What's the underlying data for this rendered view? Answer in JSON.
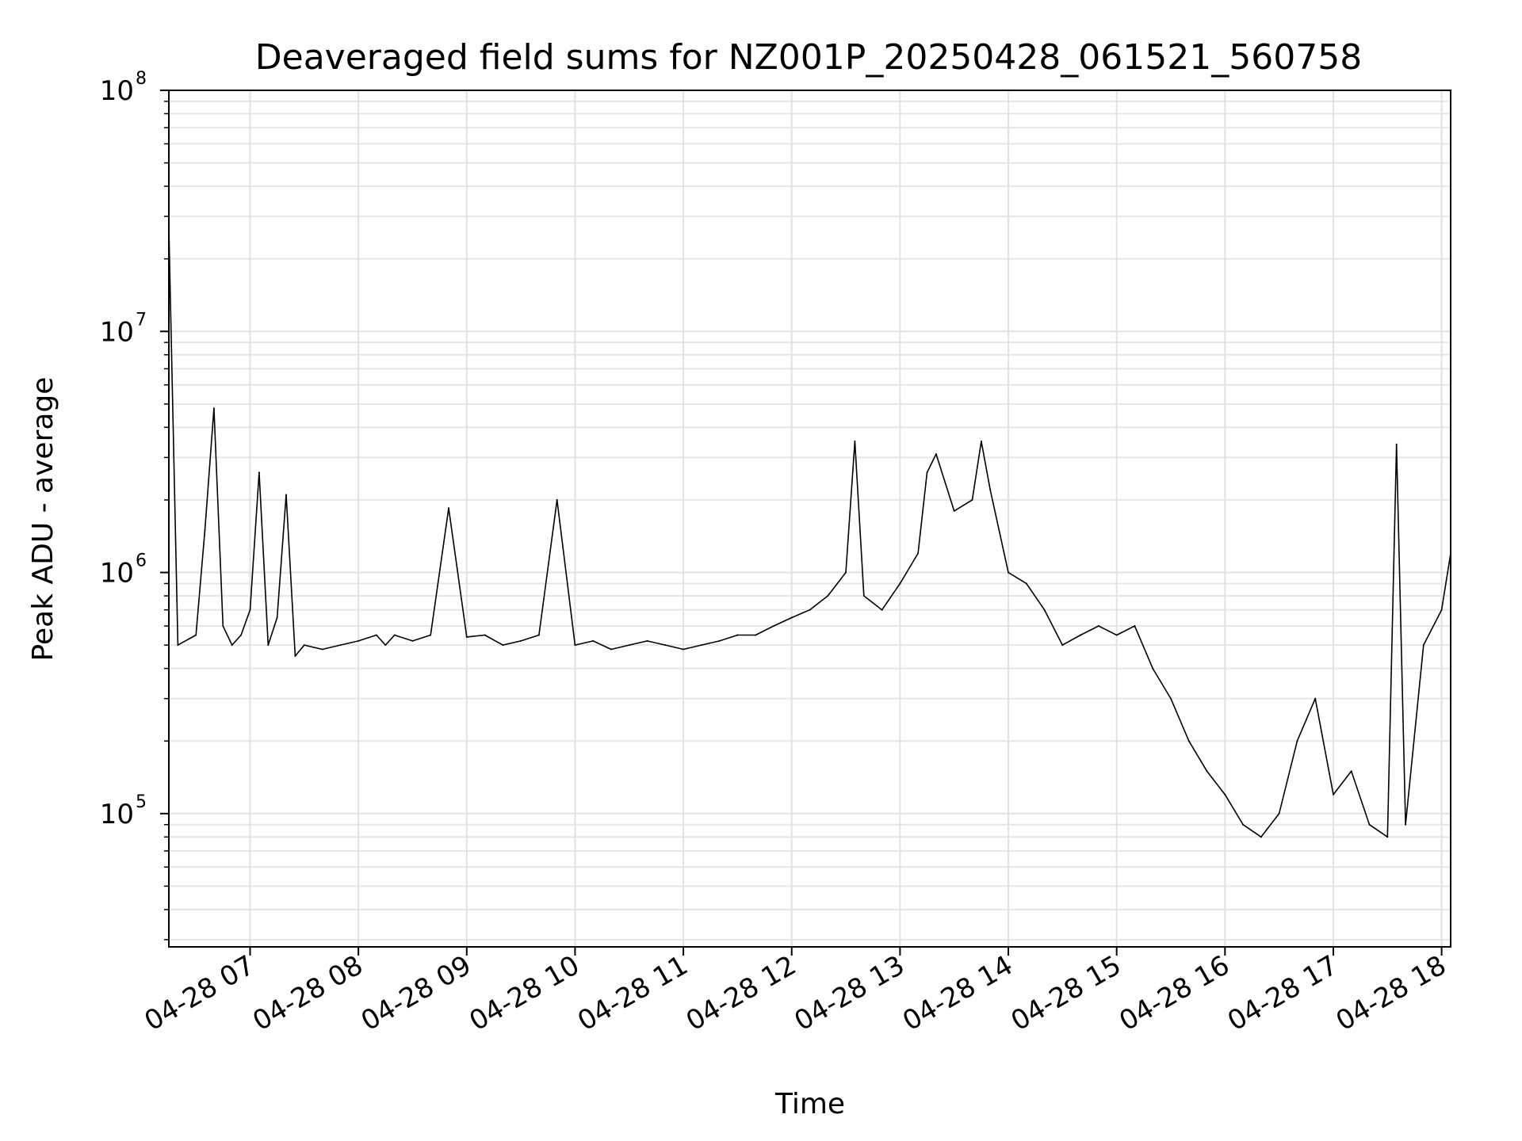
{
  "chart_data": {
    "type": "line",
    "title": "Deaveraged field sums for NZ001P_20250428_061521_560758",
    "xlabel": "Time",
    "ylabel": "Peak ADU - average",
    "yscale": "log",
    "ylim": [
      28000,
      100000000
    ],
    "xlim": [
      "04-28 06:15",
      "04-28 18:05"
    ],
    "grid": true,
    "x_tick_labels": [
      "04-28 07",
      "04-28 08",
      "04-28 09",
      "04-28 10",
      "04-28 11",
      "04-28 12",
      "04-28 13",
      "04-28 14",
      "04-28 15",
      "04-28 16",
      "04-28 17",
      "04-28 18"
    ],
    "y_tick_labels": [
      {
        "base": "10",
        "exp": "5",
        "value": 100000
      },
      {
        "base": "10",
        "exp": "6",
        "value": 1000000
      },
      {
        "base": "10",
        "exp": "7",
        "value": 10000000
      },
      {
        "base": "10",
        "exp": "8",
        "value": 100000000
      }
    ],
    "line_color": "#000000",
    "series": [
      {
        "x": [
          "04-28 06:15",
          "04-28 06:20",
          "04-28 06:30",
          "04-28 06:35",
          "04-28 06:40",
          "04-28 06:45",
          "04-28 06:50",
          "04-28 06:55",
          "04-28 07:00",
          "04-28 07:05",
          "04-28 07:10",
          "04-28 07:15",
          "04-28 07:20",
          "04-28 07:25",
          "04-28 07:30",
          "04-28 07:40",
          "04-28 07:50",
          "04-28 08:00",
          "04-28 08:10",
          "04-28 08:15",
          "04-28 08:20",
          "04-28 08:30",
          "04-28 08:40",
          "04-28 08:50",
          "04-28 09:00",
          "04-28 09:10",
          "04-28 09:20",
          "04-28 09:30",
          "04-28 09:40",
          "04-28 09:50",
          "04-28 10:00",
          "04-28 10:10",
          "04-28 10:20",
          "04-28 10:30",
          "04-28 10:40",
          "04-28 10:50",
          "04-28 11:00",
          "04-28 11:10",
          "04-28 11:20",
          "04-28 11:30",
          "04-28 11:40",
          "04-28 11:50",
          "04-28 12:00",
          "04-28 12:10",
          "04-28 12:20",
          "04-28 12:30",
          "04-28 12:35",
          "04-28 12:40",
          "04-28 12:50",
          "04-28 13:00",
          "04-28 13:10",
          "04-28 13:15",
          "04-28 13:20",
          "04-28 13:30",
          "04-28 13:40",
          "04-28 13:45",
          "04-28 13:50",
          "04-28 14:00",
          "04-28 14:10",
          "04-28 14:20",
          "04-28 14:30",
          "04-28 14:40",
          "04-28 14:50",
          "04-28 15:00",
          "04-28 15:10",
          "04-28 15:20",
          "04-28 15:30",
          "04-28 15:40",
          "04-28 15:50",
          "04-28 16:00",
          "04-28 16:10",
          "04-28 16:20",
          "04-28 16:30",
          "04-28 16:40",
          "04-28 16:50",
          "04-28 17:00",
          "04-28 17:10",
          "04-28 17:20",
          "04-28 17:30",
          "04-28 17:35",
          "04-28 17:40",
          "04-28 17:50",
          "04-28 18:00",
          "04-28 18:05"
        ],
        "y": [
          27000000,
          500000,
          550000,
          1500000,
          4800000,
          600000,
          500000,
          550000,
          700000,
          2600000,
          500000,
          650000,
          2100000,
          450000,
          500000,
          480000,
          500000,
          520000,
          550000,
          500000,
          550000,
          520000,
          550000,
          1850000,
          540000,
          550000,
          500000,
          520000,
          550000,
          2000000,
          500000,
          520000,
          480000,
          500000,
          520000,
          500000,
          480000,
          500000,
          520000,
          550000,
          550000,
          600000,
          650000,
          700000,
          800000,
          1000000,
          3500000,
          800000,
          700000,
          900000,
          1200000,
          2600000,
          3100000,
          1800000,
          2000000,
          3500000,
          2200000,
          1000000,
          900000,
          700000,
          500000,
          550000,
          600000,
          550000,
          600000,
          400000,
          300000,
          200000,
          150000,
          120000,
          90000,
          80000,
          100000,
          200000,
          300000,
          120000,
          150000,
          90000,
          80000,
          3400000,
          90000,
          500000,
          700000,
          1200000
        ]
      }
    ]
  }
}
